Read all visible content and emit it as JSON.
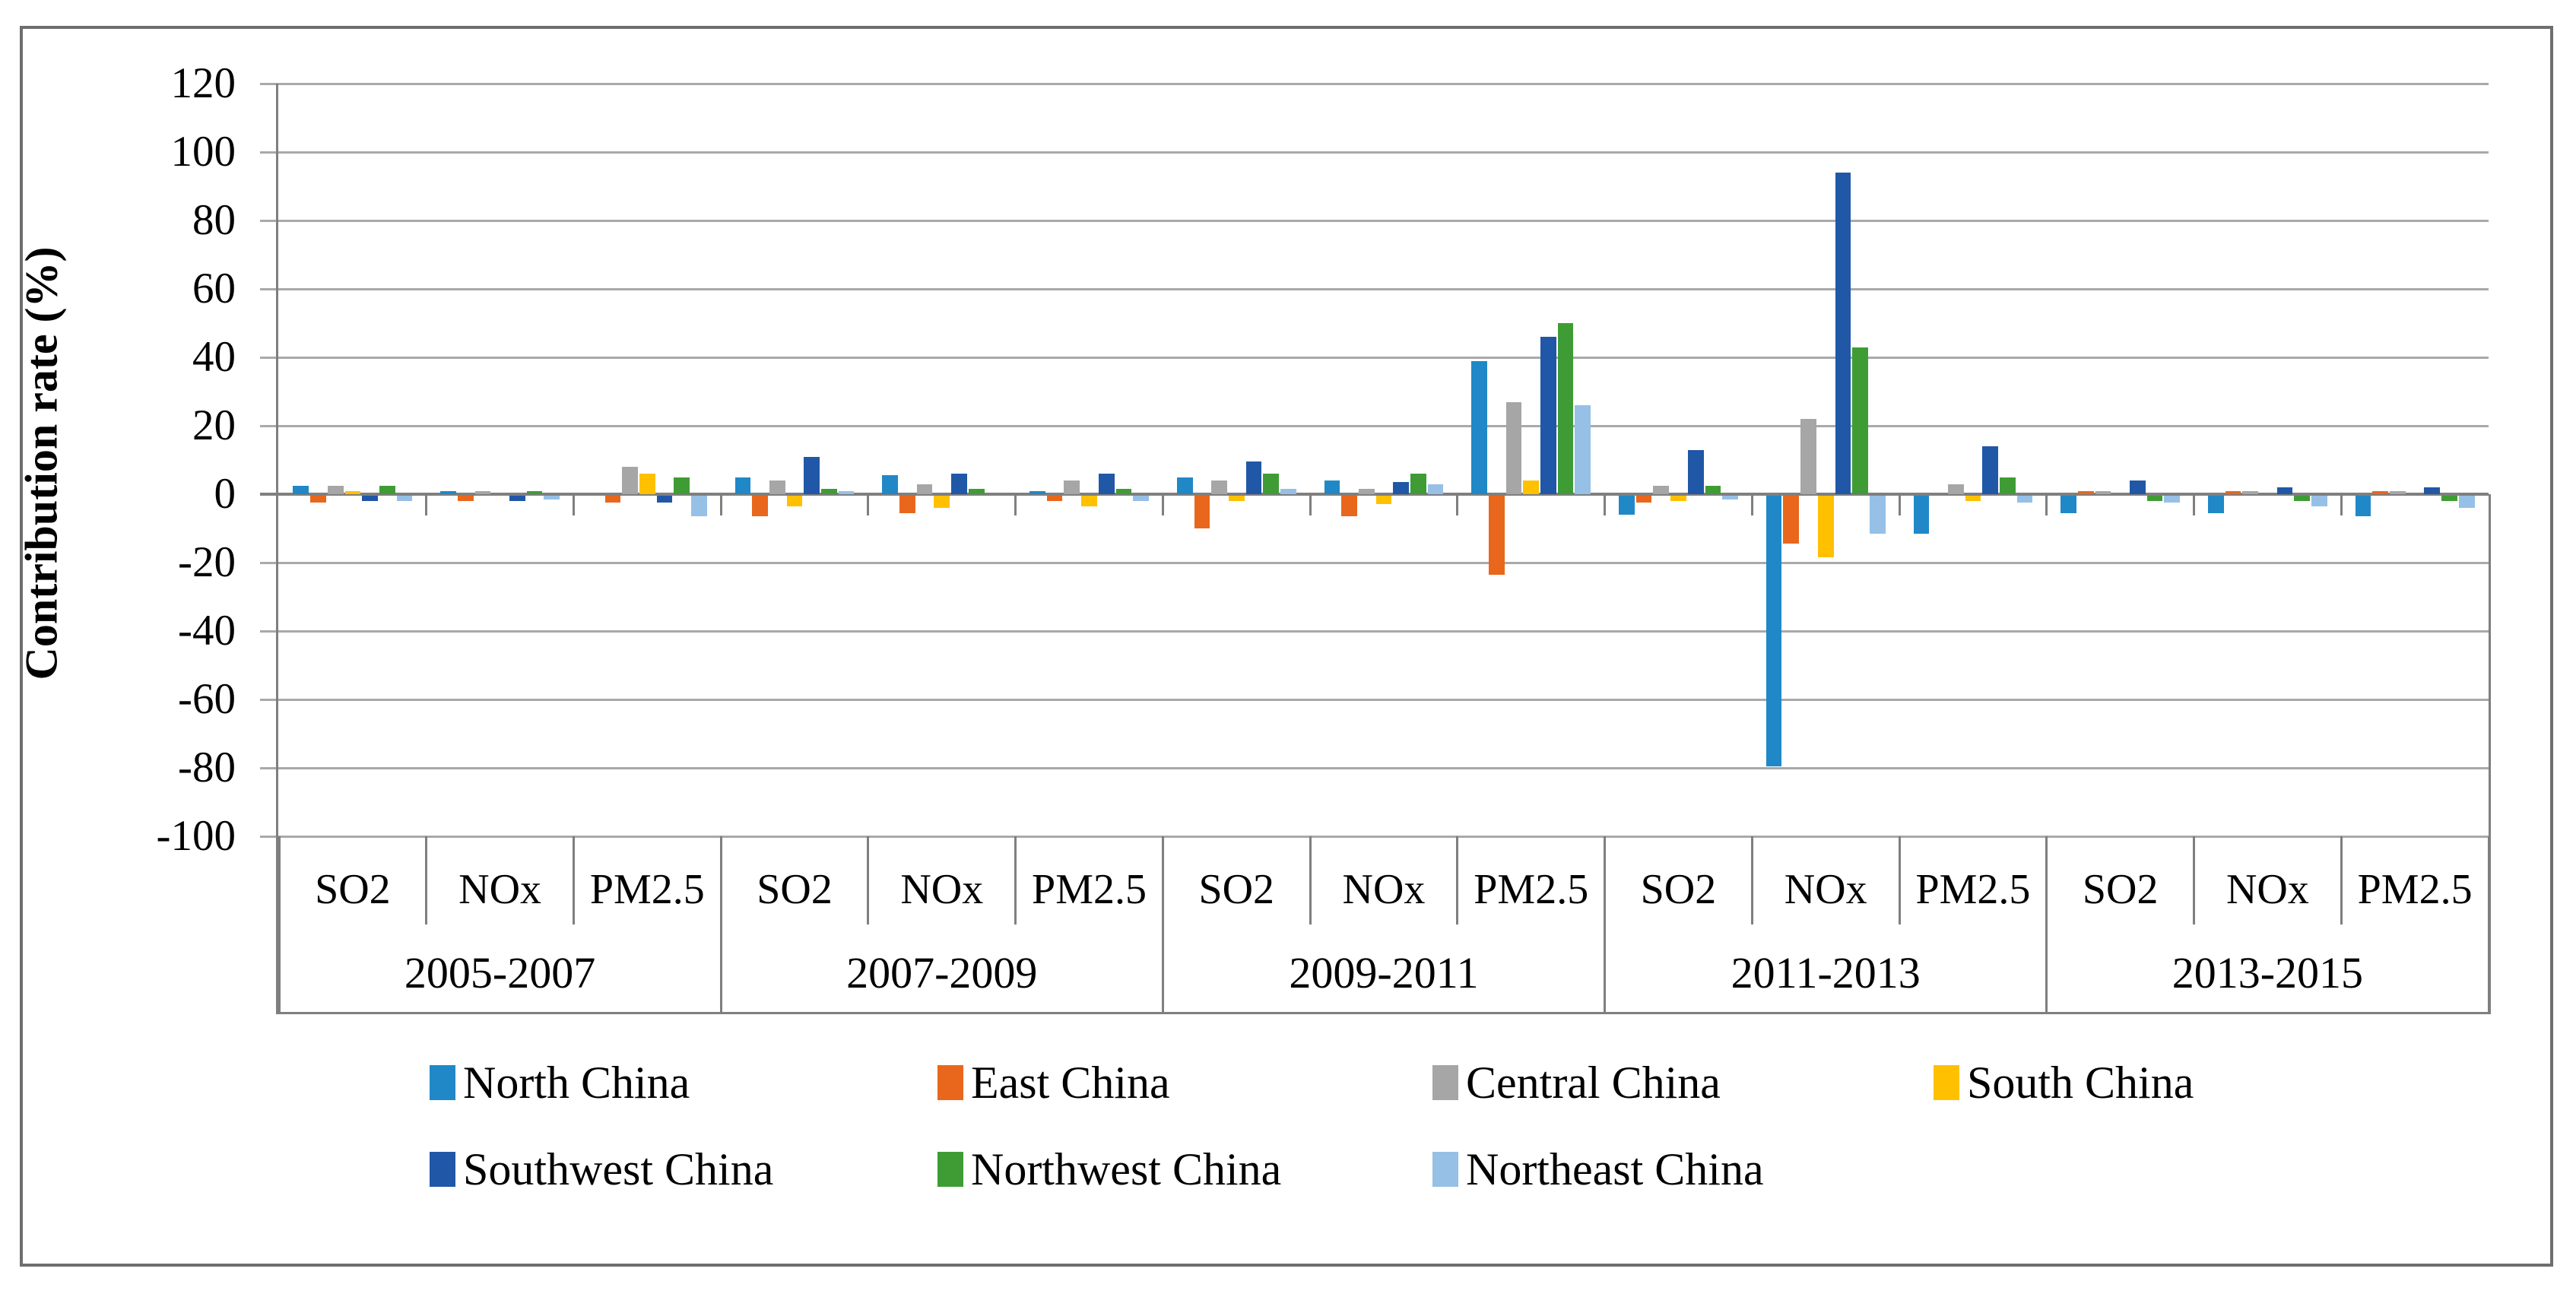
{
  "figure": {
    "y_axis_title": "Contribution rate (%)"
  },
  "chart_data": {
    "type": "bar",
    "title": "",
    "xlabel": "",
    "ylabel": "Contribution rate (%)",
    "ylim": [
      -100,
      120
    ],
    "ytick_step": 20,
    "ytick_labels": [
      "120",
      "100",
      "80",
      "60",
      "40",
      "20",
      "0",
      "-20",
      "-40",
      "-60",
      "-80",
      "-100"
    ],
    "grid": true,
    "legend_position": "bottom",
    "periods": [
      "2005-2007",
      "2007-2009",
      "2009-2011",
      "2011-2013",
      "2013-2015"
    ],
    "pollutants": [
      "SO2",
      "NOx",
      "PM2.5"
    ],
    "group_order_note": "15 groups = period-major order: SO2, NOx, PM2.5 within each period",
    "series": [
      {
        "name": "North China",
        "color": "#2088c6",
        "values": [
          2.5,
          1,
          0,
          5,
          5.5,
          1,
          5,
          4,
          39,
          -5.5,
          -79,
          -11,
          -5,
          -5,
          -6
        ]
      },
      {
        "name": "East China",
        "color": "#e8671c",
        "values": [
          -2,
          -1.5,
          -2,
          -6,
          -5,
          -1.5,
          -9.5,
          -6,
          -23,
          -2,
          -14,
          0,
          1,
          1,
          1
        ]
      },
      {
        "name": "Central China",
        "color": "#a6a6a6",
        "values": [
          2.5,
          1,
          8,
          4,
          3,
          4,
          4,
          1.5,
          27,
          2.5,
          22,
          3,
          1,
          1,
          1
        ]
      },
      {
        "name": "South China",
        "color": "#ffc000",
        "values": [
          1,
          0,
          6,
          -3,
          -3.5,
          -3,
          -1.5,
          -2.5,
          4,
          -1.5,
          -18,
          -1.5,
          0,
          0,
          0
        ]
      },
      {
        "name": "Southwest China",
        "color": "#2057a7",
        "values": [
          -1.5,
          -1.5,
          -2,
          11,
          6,
          6,
          9.5,
          3.5,
          46,
          13,
          94,
          14,
          4,
          2,
          2
        ]
      },
      {
        "name": "Northwest China",
        "color": "#3f9c35",
        "values": [
          2.5,
          1,
          5,
          1.5,
          1.5,
          1.5,
          6,
          6,
          50,
          2.5,
          43,
          5,
          -1.5,
          -1.5,
          -1.5
        ]
      },
      {
        "name": "Northeast China",
        "color": "#96c0e6",
        "values": [
          -1.5,
          -1,
          -6,
          1,
          0,
          -1.5,
          1.5,
          3,
          26,
          -1,
          -11,
          -2,
          -2,
          -3,
          -3.5
        ]
      }
    ],
    "colors": {
      "gridline": "#a9a9a9",
      "axis": "#7f7f7f",
      "figure_border": "#6e6e6e"
    }
  },
  "legend": {
    "row1": [
      "North China",
      "East China",
      "Central China",
      "South China"
    ],
    "row2": [
      "Southwest China",
      "Northwest China",
      "Northeast China"
    ]
  }
}
